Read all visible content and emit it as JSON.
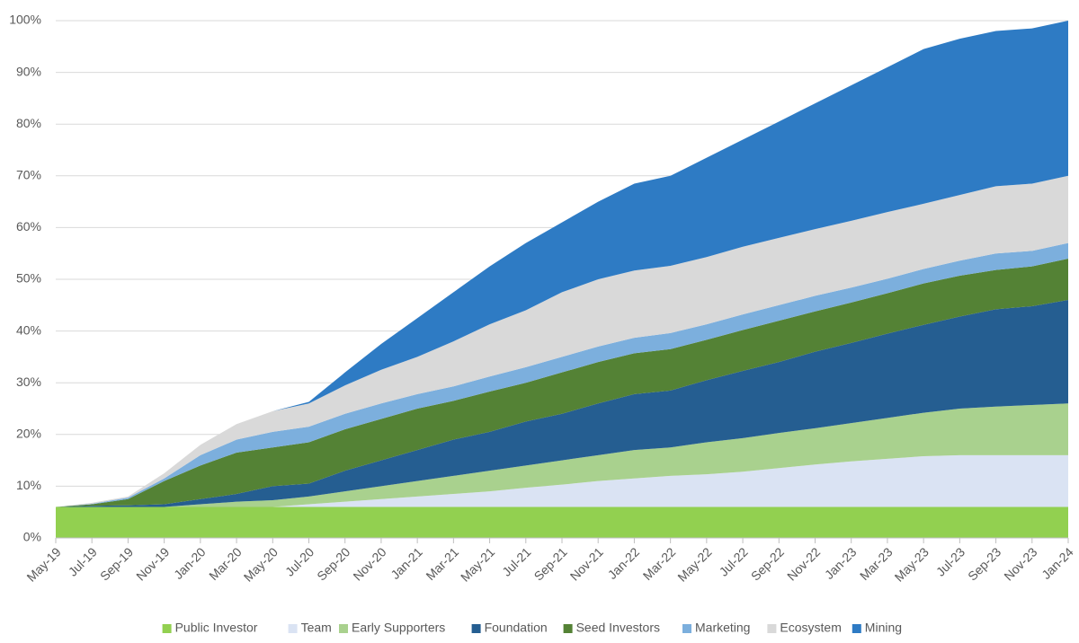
{
  "chart_data": {
    "type": "stacked_area",
    "categories": [
      "May-19",
      "Jul-19",
      "Sep-19",
      "Nov-19",
      "Jan-20",
      "Mar-20",
      "May-20",
      "Jul-20",
      "Sep-20",
      "Nov-20",
      "Jan-21",
      "Mar-21",
      "May-21",
      "Jul-21",
      "Sep-21",
      "Nov-21",
      "Jan-22",
      "Mar-22",
      "May-22",
      "Jul-22",
      "Sep-22",
      "Nov-22",
      "Jan-23",
      "Mar-23",
      "May-23",
      "Jul-23",
      "Sep-23",
      "Nov-23",
      "Jan-24"
    ],
    "series": [
      {
        "name": "Public Investor",
        "color": "#92d050",
        "values": [
          6,
          6,
          6,
          6,
          6,
          6,
          6,
          6,
          6,
          6,
          6,
          6,
          6,
          6,
          6,
          6,
          6,
          6,
          6,
          6,
          6,
          6,
          6,
          6,
          6,
          6,
          6,
          6,
          6
        ]
      },
      {
        "name": "Team",
        "color": "#dae3f3",
        "values": [
          0,
          0,
          0,
          0,
          0,
          0,
          0,
          0.5,
          1,
          1.5,
          2,
          2.5,
          3,
          3.7,
          4.3,
          5,
          5.5,
          6,
          6.3,
          6.8,
          7.5,
          8.2,
          8.8,
          9.3,
          9.8,
          10,
          10,
          10,
          10
        ]
      },
      {
        "name": "Early Supporters",
        "color": "#a9d18e",
        "values": [
          0,
          0,
          0,
          0,
          0.5,
          1,
          1.3,
          1.5,
          2,
          2.5,
          3,
          3.5,
          4,
          4.3,
          4.7,
          5,
          5.5,
          5.5,
          6.2,
          6.5,
          6.8,
          7,
          7.4,
          7.9,
          8.4,
          9,
          9.4,
          9.7,
          10
        ]
      },
      {
        "name": "Foundation",
        "color": "#255e91",
        "values": [
          0,
          0.2,
          0.3,
          0.5,
          1,
          1.5,
          2.7,
          2.5,
          4,
          5,
          6,
          7,
          7.5,
          8.5,
          9,
          10,
          10.8,
          11,
          12,
          13,
          13.7,
          14.8,
          15.5,
          16.3,
          17,
          17.8,
          18.8,
          19.1,
          20
        ]
      },
      {
        "name": "Seed Investors",
        "color": "#548235",
        "values": [
          0,
          0.3,
          1.2,
          4.5,
          6.5,
          8,
          7.5,
          8,
          8,
          8,
          8,
          7.5,
          7.8,
          7.5,
          8,
          8,
          7.9,
          8,
          7.8,
          7.9,
          8,
          7.8,
          7.8,
          7.8,
          8,
          7.9,
          7.6,
          7.7,
          8
        ]
      },
      {
        "name": "Marketing",
        "color": "#7cafdd",
        "values": [
          0,
          0.1,
          0.3,
          0.5,
          2,
          2.5,
          3,
          3,
          3,
          3,
          2.8,
          2.8,
          2.9,
          3,
          3,
          3,
          3,
          3.1,
          3,
          3,
          3,
          3,
          2.9,
          2.8,
          2.8,
          2.9,
          3.2,
          3,
          3
        ]
      },
      {
        "name": "Ecosystem",
        "color": "#d9d9d9",
        "values": [
          0,
          0.2,
          0.2,
          1,
          2,
          3,
          4,
          4.5,
          5.5,
          6.5,
          7.2,
          8.7,
          10.1,
          11,
          12.5,
          13,
          13,
          13,
          13,
          13.1,
          13,
          12.9,
          12.9,
          12.9,
          12.6,
          12.7,
          13,
          13,
          13
        ]
      },
      {
        "name": "Mining",
        "color": "#2e7bc4",
        "values": [
          0,
          0,
          0,
          0,
          0,
          0,
          0,
          0.3,
          2.5,
          5,
          7.5,
          9.5,
          11.2,
          13,
          13.5,
          15,
          16.8,
          17.4,
          19.2,
          20.7,
          22.5,
          24.3,
          26.2,
          28,
          29.9,
          30.2,
          30,
          30,
          30
        ]
      }
    ],
    "ylim": [
      0,
      100
    ],
    "yticks": [
      {
        "value": 0,
        "label": "0%"
      },
      {
        "value": 10,
        "label": "10%"
      },
      {
        "value": 20,
        "label": "20%"
      },
      {
        "value": 30,
        "label": "30%"
      },
      {
        "value": 40,
        "label": "40%"
      },
      {
        "value": 50,
        "label": "50%"
      },
      {
        "value": 60,
        "label": "60%"
      },
      {
        "value": 70,
        "label": "70%"
      },
      {
        "value": 80,
        "label": "80%"
      },
      {
        "value": 90,
        "label": "90%"
      },
      {
        "value": 100,
        "label": "100%"
      }
    ],
    "grid": true,
    "legend": "bottom"
  }
}
